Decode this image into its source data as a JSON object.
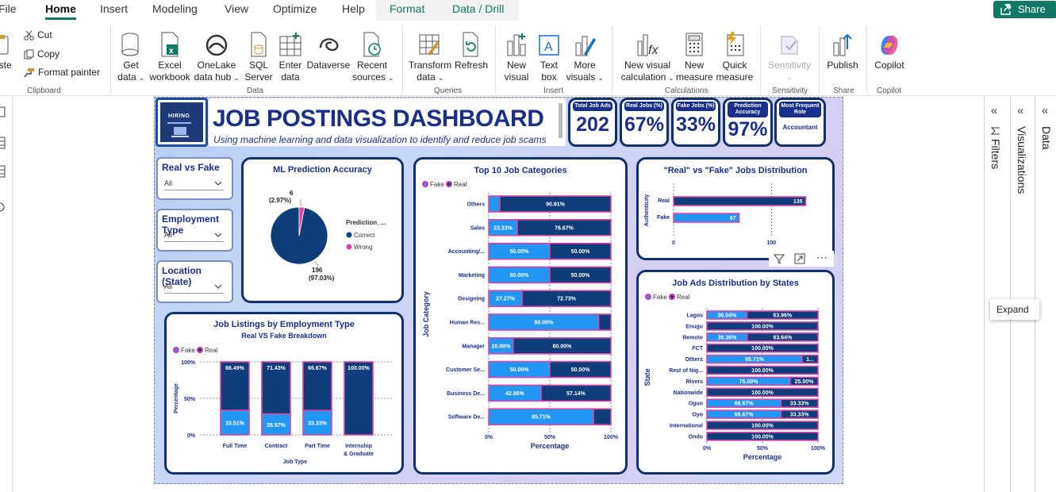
{
  "menu": {
    "tabs": [
      "File",
      "Home",
      "Insert",
      "Modeling",
      "View",
      "Optimize",
      "Help",
      "Format",
      "Data / Drill"
    ],
    "share": "Share"
  },
  "ribbon": {
    "clipboard": {
      "paste": "aste",
      "cut": "Cut",
      "copy": "Copy",
      "format_painter": "Format painter",
      "group": "Clipboard"
    },
    "data": {
      "get_data": [
        "Get",
        "data"
      ],
      "excel": [
        "Excel",
        "workbook"
      ],
      "onelake": [
        "OneLake",
        "data hub"
      ],
      "sql": [
        "SQL",
        "Server"
      ],
      "enter": [
        "Enter",
        "data"
      ],
      "dataverse": "Dataverse",
      "recent": [
        "Recent",
        "sources"
      ],
      "group": "Data"
    },
    "queries": {
      "transform": [
        "Transform",
        "data"
      ],
      "refresh": "Refresh",
      "group": "Queries"
    },
    "insert": {
      "new_visual": [
        "New",
        "visual"
      ],
      "text_box": [
        "Text",
        "box"
      ],
      "more_visuals": [
        "More",
        "visuals"
      ],
      "group": "Insert"
    },
    "calculations": {
      "new_visual_calc": [
        "New visual",
        "calculation"
      ],
      "new_measure": [
        "New",
        "measure"
      ],
      "quick_measure": [
        "Quick",
        "measure"
      ],
      "group": "Calculations"
    },
    "sensitivity": {
      "label": "Sensitivity",
      "group": "Sensitivity"
    },
    "share": {
      "publish": "Publish",
      "group": "Share"
    },
    "copilot": {
      "label": "Copilot",
      "group": "Copilot"
    }
  },
  "panels": {
    "filters": "Filters",
    "visualizations": "Visualizations",
    "data": "Data"
  },
  "tooltip": "Expand",
  "colors": {
    "accent": "#117865",
    "navy": "#0d3d7a",
    "fake": "#2196f3",
    "pink": "#d946a6",
    "title": "#1b2f84"
  },
  "dashboard": {
    "hiring_logo": "HIRING",
    "title": "JOB POSTINGS DASHBOARD",
    "subtitle": "Using machine learning and data visualization to identify and reduce job scams",
    "kpis": [
      {
        "label": "Total Job Ads",
        "value": "202"
      },
      {
        "label": "Real Jobs (%)",
        "value": "67%"
      },
      {
        "label": "Fake Jobs (%)",
        "value": "33%"
      },
      {
        "label": "Prediction Accuracy",
        "value": "97%"
      },
      {
        "label": "Most Frequent Role",
        "value": "Accountant"
      }
    ],
    "slicers": [
      {
        "title": "Real vs Fake",
        "value": "All"
      },
      {
        "title": "Employment Type",
        "value": "All"
      },
      {
        "title": "Location (State)",
        "value": "All"
      }
    ],
    "legend": {
      "fake": "Fake",
      "real": "Real"
    }
  },
  "chart_data": [
    {
      "id": "pie",
      "type": "pie",
      "title": "ML Prediction Accuracy",
      "legend_title": "Prediction_...",
      "slices": [
        {
          "name": "Correct",
          "value": 196,
          "label": "196",
          "pct": "(97.03%)"
        },
        {
          "name": "Wrong",
          "value": 6,
          "label": "6",
          "pct": "(2.97%)"
        }
      ]
    },
    {
      "id": "categories",
      "type": "bar",
      "title": "Top 10 Job Categories",
      "xlabel": "Percentage",
      "ylabel": "Job Category",
      "x_ticks": [
        "0%",
        "50%",
        "100%"
      ],
      "categories": [
        "Others",
        "Sales",
        "Accounting/...",
        "Marketing",
        "Designing",
        "Human Res...",
        "Manager",
        "Customer Se...",
        "Business De...",
        "Software De..."
      ],
      "series": [
        {
          "name": "Fake",
          "values": [
            9.09,
            23.33,
            50,
            50,
            27.27,
            90,
            20,
            50,
            42.86,
            85.71
          ],
          "labels": [
            "",
            "23.33%",
            "50.00%",
            "50.00%",
            "27.27%",
            "90.00%",
            "20.00%",
            "50.00%",
            "42.86%",
            "85.71%"
          ]
        },
        {
          "name": "Real",
          "values": [
            90.91,
            76.67,
            50,
            50,
            72.73,
            10,
            80,
            50,
            57.14,
            14.29
          ],
          "labels": [
            "90.91%",
            "76.67%",
            "50.00%",
            "50.00%",
            "72.73%",
            "",
            "80.00%",
            "50.00%",
            "57.14%",
            ""
          ]
        }
      ]
    },
    {
      "id": "realfake",
      "type": "bar",
      "title": "\"Real\" vs \"Fake\" Jobs Distribution",
      "ylabel": "Authenticity",
      "x_ticks": [
        "0",
        "100"
      ],
      "xlim": [
        0,
        150
      ],
      "categories": [
        "Real",
        "Fake"
      ],
      "values": [
        135,
        67
      ]
    },
    {
      "id": "states",
      "type": "bar",
      "title": "Job Ads Distribution by States",
      "xlabel": "Percentage",
      "ylabel": "State",
      "x_ticks": [
        "0%",
        "50%",
        "100%"
      ],
      "categories": [
        "Lagos",
        "Enugu",
        "Remote",
        "FCT",
        "Others",
        "Rest of Nig...",
        "Rivers",
        "Nationwide",
        "Ogun",
        "Oyo",
        "International",
        "Ondo"
      ],
      "series": [
        {
          "name": "Fake",
          "values": [
            36.04,
            0,
            36.36,
            0,
            85.71,
            0,
            75,
            0,
            66.67,
            66.67,
            0,
            0
          ],
          "labels": [
            "36.04%",
            "",
            "36.36%",
            "",
            "85.71%",
            "",
            "75.00%",
            "",
            "66.67%",
            "66.67%",
            "",
            ""
          ]
        },
        {
          "name": "Real",
          "values": [
            63.96,
            100,
            63.64,
            100,
            14.29,
            100,
            25,
            100,
            33.33,
            33.33,
            100,
            100
          ],
          "labels": [
            "63.96%",
            "100.00%",
            "63.64%",
            "100.00%",
            "1...",
            "100.00%",
            "25.00%",
            "100.00%",
            "33.33%",
            "33.33%",
            "100.00%",
            "100.00%"
          ]
        }
      ]
    },
    {
      "id": "employment",
      "type": "bar",
      "title": "Job Listings by Employment Type",
      "subtitle": "Real VS Fake Breakdown",
      "xlabel": "Job Type",
      "ylabel": "Percentage",
      "y_ticks": [
        "100%",
        "50%",
        "0%"
      ],
      "categories": [
        "Full Time",
        "Contract",
        "Part Time",
        "Internship & Graduate"
      ],
      "series": [
        {
          "name": "Fake",
          "values": [
            33.51,
            28.57,
            33.33,
            0
          ],
          "labels": [
            "33.51%",
            "28.57%",
            "33.33%",
            ""
          ]
        },
        {
          "name": "Real",
          "values": [
            66.49,
            71.43,
            66.67,
            100
          ],
          "labels": [
            "66.49%",
            "71.43%",
            "66.67%",
            "100.00%"
          ]
        }
      ]
    }
  ]
}
